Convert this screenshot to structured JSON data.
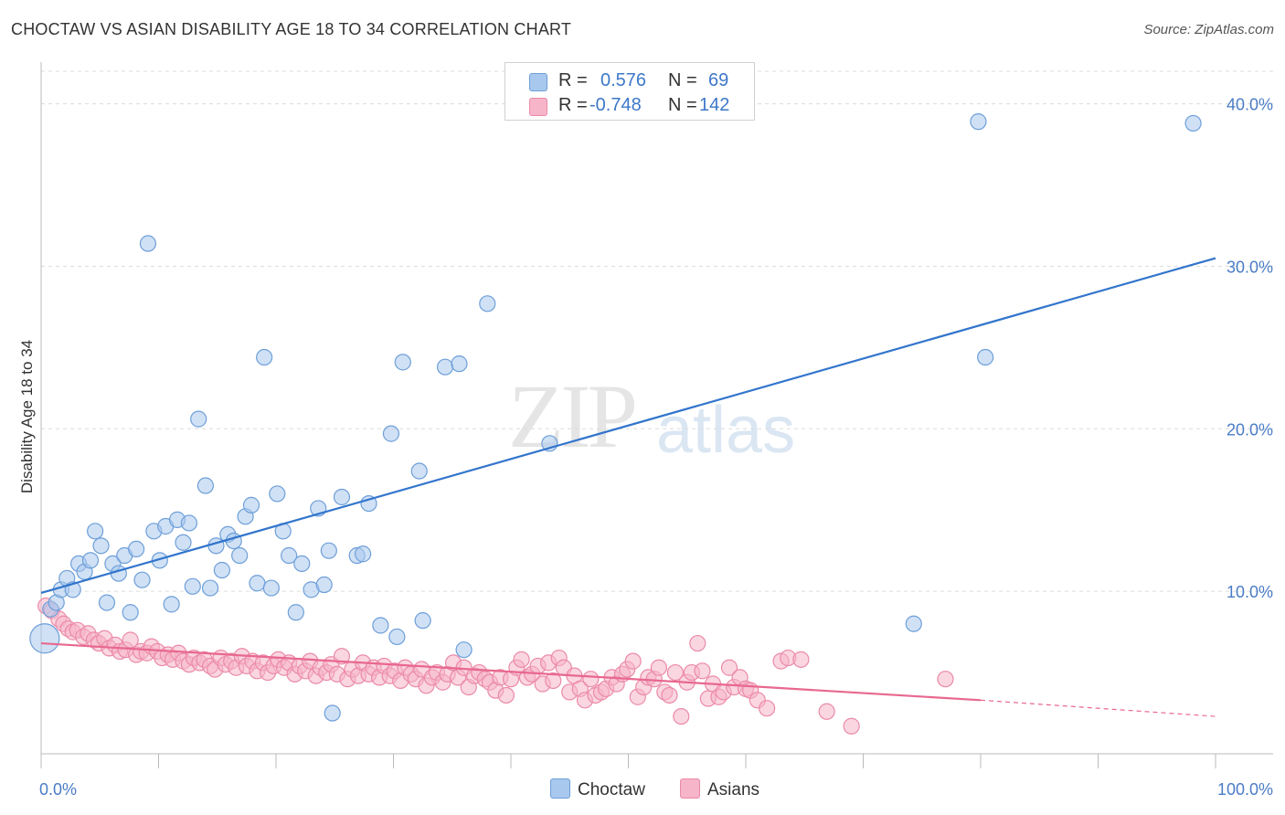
{
  "header": {
    "title": "CHOCTAW VS ASIAN DISABILITY AGE 18 TO 34 CORRELATION CHART",
    "source": "Source: ZipAtlas.com"
  },
  "watermark": {
    "part1": "ZIP",
    "part2": "atlas"
  },
  "legend": {
    "rows": [
      {
        "r_label": "R =",
        "r_value": "0.576",
        "n_label": "N =",
        "n_value": "69",
        "color": "#a9c8ee"
      },
      {
        "r_label": "R =",
        "r_value": "-0.748",
        "n_label": "N =",
        "n_value": "142",
        "color": "#f6b5c9"
      }
    ]
  },
  "bottom_legend": {
    "series1": "Choctaw",
    "series2": "Asians"
  },
  "colors": {
    "blue_fill": "#a9c8ee",
    "blue_stroke": "#6e9fd8",
    "blue_line": "#3275cc",
    "pink_fill": "#f6b5c9",
    "pink_stroke": "#eb8aa8",
    "pink_line": "#e8688f",
    "tick": "#4a7cc6",
    "grid": "#dcdcdc"
  },
  "chart_data": {
    "type": "scatter",
    "title": "CHOCTAW VS ASIAN DISABILITY AGE 18 TO 34 CORRELATION CHART",
    "xlabel": "",
    "ylabel": "Disability Age 18 to 34",
    "xlim": [
      0,
      100
    ],
    "ylim": [
      0,
      42
    ],
    "x_tick_labels": [
      "0.0%",
      "100.0%"
    ],
    "y_ticks": [
      10,
      20,
      30,
      40
    ],
    "y_tick_labels": [
      "10.0%",
      "20.0%",
      "30.0%",
      "40.0%"
    ],
    "grid": true,
    "legend_position": "top-center",
    "series": [
      {
        "name": "Choctaw",
        "r": 0.576,
        "n": 69,
        "trend": {
          "x": [
            0,
            100
          ],
          "y": [
            9.9,
            30.5
          ],
          "extended": false
        },
        "points": [
          [
            0.3,
            7.1
          ],
          [
            0.8,
            8.9
          ],
          [
            1.3,
            9.3
          ],
          [
            1.7,
            10.1
          ],
          [
            2.2,
            10.8
          ],
          [
            2.7,
            10.1
          ],
          [
            3.2,
            11.7
          ],
          [
            3.7,
            11.2
          ],
          [
            4.2,
            11.9
          ],
          [
            4.6,
            13.7
          ],
          [
            5.1,
            12.8
          ],
          [
            5.6,
            9.3
          ],
          [
            6.1,
            11.7
          ],
          [
            6.6,
            11.1
          ],
          [
            7.1,
            12.2
          ],
          [
            7.6,
            8.7
          ],
          [
            8.1,
            12.6
          ],
          [
            8.6,
            10.7
          ],
          [
            9.1,
            31.4
          ],
          [
            9.6,
            13.7
          ],
          [
            10.1,
            11.9
          ],
          [
            10.6,
            14.0
          ],
          [
            11.1,
            9.2
          ],
          [
            11.6,
            14.4
          ],
          [
            12.1,
            13.0
          ],
          [
            12.6,
            14.2
          ],
          [
            12.9,
            10.3
          ],
          [
            13.4,
            20.6
          ],
          [
            14.0,
            16.5
          ],
          [
            14.4,
            10.2
          ],
          [
            14.9,
            12.8
          ],
          [
            15.4,
            11.3
          ],
          [
            15.9,
            13.5
          ],
          [
            16.4,
            13.1
          ],
          [
            16.9,
            12.2
          ],
          [
            17.4,
            14.6
          ],
          [
            17.9,
            15.3
          ],
          [
            18.4,
            10.5
          ],
          [
            19.0,
            24.4
          ],
          [
            19.6,
            10.2
          ],
          [
            20.1,
            16.0
          ],
          [
            20.6,
            13.7
          ],
          [
            21.1,
            12.2
          ],
          [
            21.7,
            8.7
          ],
          [
            22.2,
            11.7
          ],
          [
            23.0,
            10.1
          ],
          [
            23.6,
            15.1
          ],
          [
            24.1,
            10.4
          ],
          [
            24.5,
            12.5
          ],
          [
            24.8,
            2.5
          ],
          [
            25.6,
            15.8
          ],
          [
            26.9,
            12.2
          ],
          [
            27.4,
            12.3
          ],
          [
            27.9,
            15.4
          ],
          [
            28.9,
            7.9
          ],
          [
            29.8,
            19.7
          ],
          [
            30.3,
            7.2
          ],
          [
            30.8,
            24.1
          ],
          [
            32.2,
            17.4
          ],
          [
            32.5,
            8.2
          ],
          [
            34.4,
            23.8
          ],
          [
            35.6,
            24.0
          ],
          [
            36.0,
            6.4
          ],
          [
            38.0,
            27.7
          ],
          [
            43.3,
            19.1
          ],
          [
            74.3,
            8.0
          ],
          [
            79.8,
            38.9
          ],
          [
            80.4,
            24.4
          ],
          [
            98.1,
            38.8
          ]
        ]
      },
      {
        "name": "Asians",
        "r": -0.748,
        "n": 142,
        "trend": {
          "x": [
            0,
            80.0,
            100
          ],
          "y": [
            6.8,
            3.3,
            2.3
          ],
          "solid_until": 80.0
        },
        "points": [
          [
            0.4,
            9.1
          ],
          [
            0.9,
            8.8
          ],
          [
            1.5,
            8.3
          ],
          [
            1.9,
            8.0
          ],
          [
            2.3,
            7.7
          ],
          [
            2.7,
            7.5
          ],
          [
            3.1,
            7.6
          ],
          [
            3.6,
            7.2
          ],
          [
            4.0,
            7.4
          ],
          [
            4.5,
            7.0
          ],
          [
            4.9,
            6.8
          ],
          [
            5.4,
            7.1
          ],
          [
            5.8,
            6.5
          ],
          [
            6.3,
            6.7
          ],
          [
            6.7,
            6.3
          ],
          [
            7.2,
            6.4
          ],
          [
            7.6,
            7.0
          ],
          [
            8.1,
            6.1
          ],
          [
            8.5,
            6.3
          ],
          [
            9.0,
            6.2
          ],
          [
            9.4,
            6.6
          ],
          [
            9.9,
            6.3
          ],
          [
            10.3,
            5.9
          ],
          [
            10.8,
            6.1
          ],
          [
            11.2,
            5.8
          ],
          [
            11.7,
            6.2
          ],
          [
            12.1,
            5.7
          ],
          [
            12.6,
            5.5
          ],
          [
            13.0,
            5.9
          ],
          [
            13.5,
            5.6
          ],
          [
            13.9,
            5.8
          ],
          [
            14.4,
            5.4
          ],
          [
            14.8,
            5.2
          ],
          [
            15.3,
            5.9
          ],
          [
            15.7,
            5.5
          ],
          [
            16.2,
            5.7
          ],
          [
            16.6,
            5.3
          ],
          [
            17.1,
            6.0
          ],
          [
            17.5,
            5.4
          ],
          [
            18.0,
            5.7
          ],
          [
            18.4,
            5.1
          ],
          [
            18.9,
            5.6
          ],
          [
            19.3,
            5.0
          ],
          [
            19.8,
            5.4
          ],
          [
            20.2,
            5.8
          ],
          [
            20.7,
            5.3
          ],
          [
            21.1,
            5.6
          ],
          [
            21.6,
            4.9
          ],
          [
            22.0,
            5.4
          ],
          [
            22.5,
            5.1
          ],
          [
            22.9,
            5.7
          ],
          [
            23.4,
            4.8
          ],
          [
            23.8,
            5.3
          ],
          [
            24.3,
            5.0
          ],
          [
            24.7,
            5.5
          ],
          [
            25.2,
            4.9
          ],
          [
            25.6,
            6.0
          ],
          [
            26.1,
            4.6
          ],
          [
            26.5,
            5.2
          ],
          [
            27.0,
            4.8
          ],
          [
            27.4,
            5.6
          ],
          [
            27.9,
            4.9
          ],
          [
            28.3,
            5.3
          ],
          [
            28.8,
            4.7
          ],
          [
            29.2,
            5.4
          ],
          [
            29.7,
            4.8
          ],
          [
            30.1,
            5.1
          ],
          [
            30.6,
            4.5
          ],
          [
            31.0,
            5.3
          ],
          [
            31.5,
            4.9
          ],
          [
            31.9,
            4.6
          ],
          [
            32.4,
            5.2
          ],
          [
            32.8,
            4.2
          ],
          [
            33.3,
            4.7
          ],
          [
            33.7,
            5.0
          ],
          [
            34.2,
            4.4
          ],
          [
            34.6,
            4.9
          ],
          [
            35.1,
            5.6
          ],
          [
            35.5,
            4.7
          ],
          [
            36.0,
            5.3
          ],
          [
            36.4,
            4.1
          ],
          [
            36.9,
            4.8
          ],
          [
            37.3,
            5.0
          ],
          [
            37.8,
            4.6
          ],
          [
            38.2,
            4.4
          ],
          [
            38.7,
            3.9
          ],
          [
            39.1,
            4.7
          ],
          [
            39.6,
            3.6
          ],
          [
            40.0,
            4.6
          ],
          [
            40.5,
            5.3
          ],
          [
            40.9,
            5.8
          ],
          [
            41.4,
            4.7
          ],
          [
            41.8,
            4.9
          ],
          [
            42.3,
            5.4
          ],
          [
            42.7,
            4.3
          ],
          [
            43.2,
            5.6
          ],
          [
            43.6,
            4.5
          ],
          [
            44.1,
            5.9
          ],
          [
            44.5,
            5.3
          ],
          [
            45.0,
            3.8
          ],
          [
            45.4,
            4.8
          ],
          [
            45.9,
            4.0
          ],
          [
            46.3,
            3.3
          ],
          [
            46.8,
            4.6
          ],
          [
            47.2,
            3.6
          ],
          [
            47.7,
            3.8
          ],
          [
            48.1,
            4.0
          ],
          [
            48.6,
            4.7
          ],
          [
            49.0,
            4.3
          ],
          [
            49.5,
            4.9
          ],
          [
            49.9,
            5.2
          ],
          [
            50.4,
            5.7
          ],
          [
            50.8,
            3.5
          ],
          [
            51.3,
            4.1
          ],
          [
            51.7,
            4.7
          ],
          [
            52.2,
            4.6
          ],
          [
            52.6,
            5.3
          ],
          [
            53.1,
            3.8
          ],
          [
            53.5,
            3.6
          ],
          [
            54.0,
            5.0
          ],
          [
            54.5,
            2.3
          ],
          [
            55.0,
            4.4
          ],
          [
            55.4,
            5.0
          ],
          [
            55.9,
            6.8
          ],
          [
            56.3,
            5.1
          ],
          [
            56.8,
            3.4
          ],
          [
            57.2,
            4.3
          ],
          [
            57.7,
            3.5
          ],
          [
            58.1,
            3.8
          ],
          [
            58.6,
            5.3
          ],
          [
            59.0,
            4.1
          ],
          [
            59.5,
            4.7
          ],
          [
            60.0,
            4.0
          ],
          [
            60.4,
            3.9
          ],
          [
            61.0,
            3.3
          ],
          [
            61.8,
            2.8
          ],
          [
            63.0,
            5.7
          ],
          [
            63.6,
            5.9
          ],
          [
            64.7,
            5.8
          ],
          [
            66.9,
            2.6
          ],
          [
            69.0,
            1.7
          ],
          [
            77.0,
            4.6
          ]
        ]
      }
    ]
  }
}
